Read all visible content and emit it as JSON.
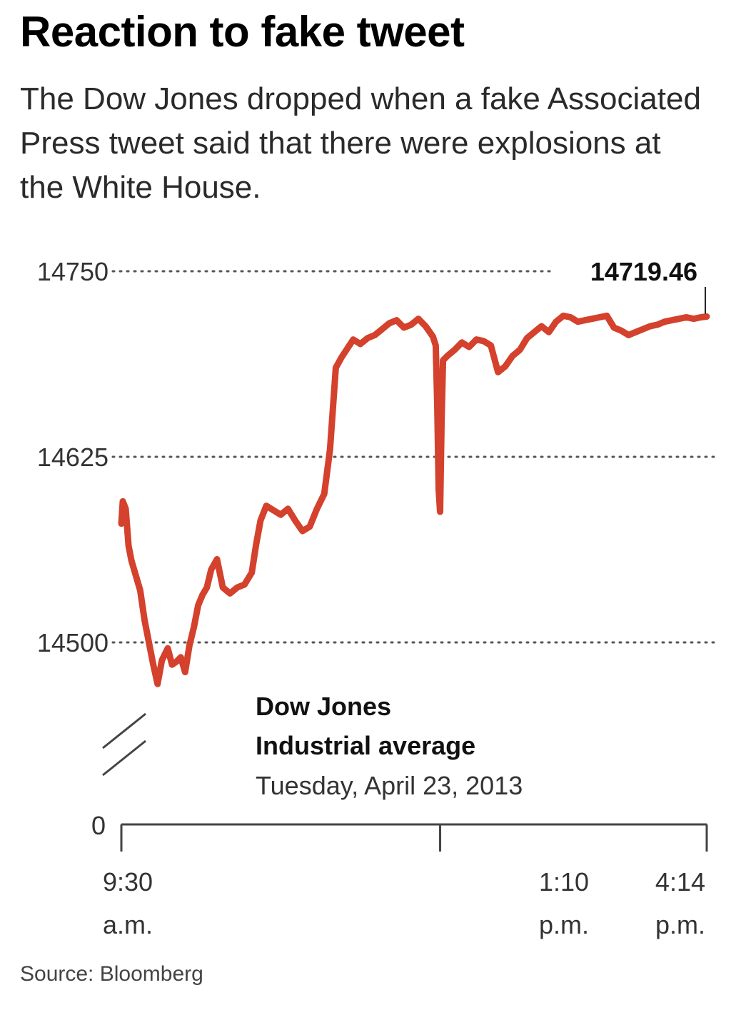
{
  "header": {
    "title": "Reaction to fake tweet",
    "subtitle": "The Dow Jones dropped when a fake Associated Press tweet said that there were explosions at the White House."
  },
  "source": "Source: Bloomberg",
  "chart_data": {
    "type": "line",
    "title": "Reaction to fake tweet",
    "xlabel": "",
    "ylabel": "",
    "ylim": [
      14450,
      14750
    ],
    "y_axis_break": true,
    "y_ticks": [
      {
        "value": 14750,
        "label": "14750"
      },
      {
        "value": 14625,
        "label": "14625"
      },
      {
        "value": 14500,
        "label": "14500"
      },
      {
        "value": 0,
        "label": "0"
      }
    ],
    "x_unit": "minutes",
    "x_range": [
      570,
      974
    ],
    "x_ticks": [
      {
        "minute": 570,
        "line1": "9:30",
        "line2": "a.m."
      },
      {
        "minute": 790,
        "line1": "1:10",
        "line2": "p.m."
      },
      {
        "minute": 974,
        "line1": "4:14",
        "line2": "p.m."
      }
    ],
    "grid": "dotted horizontal",
    "legend": {
      "name_line1": "Dow Jones",
      "name_line2": "Industrial average",
      "date": "Tuesday, April 23, 2013"
    },
    "annotation": {
      "label": "14719.46",
      "minute": 974,
      "value": 14719.46
    },
    "colors": {
      "line": "#d4412c",
      "grid": "#555555",
      "axis": "#444444"
    },
    "series": [
      {
        "x": [
          570,
          571,
          573,
          575,
          577,
          580,
          583,
          586,
          589,
          592,
          595,
          598,
          600,
          602,
          605,
          608,
          611,
          614,
          617,
          620,
          623,
          626,
          629,
          632,
          636,
          640,
          645,
          650,
          655,
          660,
          663,
          666,
          670,
          675,
          680,
          685,
          690,
          695,
          700,
          705,
          710,
          714,
          718,
          722,
          726,
          730,
          735,
          740,
          745,
          750,
          755,
          760,
          765,
          770,
          775,
          780,
          785,
          787,
          788,
          789,
          790,
          791,
          792,
          795,
          800,
          805,
          810,
          815,
          820,
          825,
          830,
          835,
          840,
          845,
          850,
          855,
          860,
          865,
          870,
          875,
          880,
          885,
          890,
          895,
          900,
          905,
          910,
          915,
          920,
          925,
          930,
          935,
          940,
          945,
          950,
          955,
          960,
          965,
          970,
          974
        ],
        "values": [
          14580,
          14595,
          14590,
          14565,
          14555,
          14545,
          14535,
          14515,
          14500,
          14485,
          14472,
          14488,
          14492,
          14496,
          14485,
          14487,
          14490,
          14480,
          14498,
          14510,
          14525,
          14532,
          14537,
          14549,
          14556,
          14537,
          14533,
          14537,
          14539,
          14547,
          14566,
          14582,
          14592,
          14589,
          14586,
          14590,
          14582,
          14575,
          14578,
          14590,
          14600,
          14630,
          14685,
          14692,
          14698,
          14704,
          14701,
          14705,
          14707,
          14711,
          14715,
          14717,
          14712,
          14714,
          14718,
          14713,
          14706,
          14700,
          14660,
          14603,
          14588,
          14650,
          14690,
          14693,
          14697,
          14702,
          14699,
          14704,
          14703,
          14700,
          14682,
          14686,
          14693,
          14697,
          14705,
          14709,
          14713,
          14709,
          14716,
          14720,
          14719,
          14716,
          14717,
          14718,
          14719,
          14720,
          14712,
          14710,
          14707,
          14709,
          14711,
          14713,
          14714,
          14716,
          14717,
          14718,
          14719,
          14718,
          14719,
          14719.46
        ]
      }
    ]
  }
}
